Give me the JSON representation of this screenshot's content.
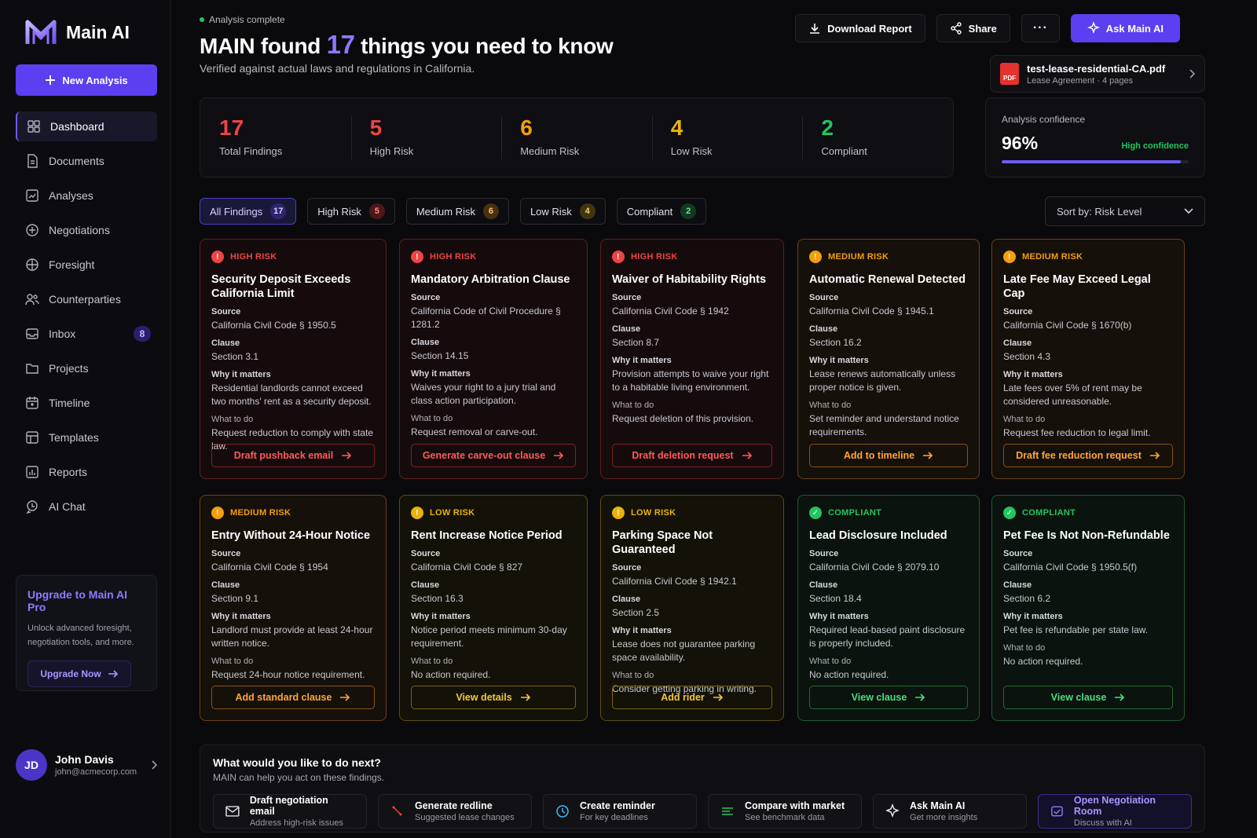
{
  "app": {
    "name": "Main AI"
  },
  "sidebar": {
    "new_analysis": "New Analysis",
    "items": [
      {
        "label": "Dashboard",
        "icon": "dashboard-icon"
      },
      {
        "label": "Documents",
        "icon": "document-icon"
      },
      {
        "label": "Analyses",
        "icon": "analyses-icon"
      },
      {
        "label": "Negotiations",
        "icon": "negotiations-icon"
      },
      {
        "label": "Foresight",
        "icon": "foresight-icon"
      },
      {
        "label": "Counterparties",
        "icon": "people-icon"
      },
      {
        "label": "Inbox",
        "icon": "inbox-icon",
        "badge": "8"
      },
      {
        "label": "Projects",
        "icon": "folder-icon"
      },
      {
        "label": "Timeline",
        "icon": "calendar-icon"
      },
      {
        "label": "Templates",
        "icon": "templates-icon"
      },
      {
        "label": "Reports",
        "icon": "reports-icon"
      },
      {
        "label": "AI Chat",
        "icon": "chat-icon"
      }
    ],
    "upgrade": {
      "title": "Upgrade to Main AI Pro",
      "desc": "Unlock advanced foresight, negotiation tools, and more.",
      "button": "Upgrade Now"
    },
    "user": {
      "initials": "JD",
      "name": "John Davis",
      "email": "john@acmecorp.com"
    }
  },
  "header": {
    "status": "Analysis complete",
    "headline_pre": "MAIN found",
    "headline_num": "17",
    "headline_post": "things you need to know",
    "subline": "Verified against actual laws and regulations in California.",
    "actions": {
      "download": "Download Report",
      "share": "Share",
      "more": "···",
      "ask": "Ask Main AI"
    },
    "file": {
      "name": "test-lease-residential-CA.pdf",
      "meta": "Lease Agreement · 4 pages",
      "icon_text": "PDF"
    }
  },
  "stats": [
    {
      "value": "17",
      "label": "Total Findings",
      "color": "#ef4444"
    },
    {
      "value": "5",
      "label": "High Risk",
      "color": "#ef4444"
    },
    {
      "value": "6",
      "label": "Medium Risk",
      "color": "#f59e0b"
    },
    {
      "value": "4",
      "label": "Low Risk",
      "color": "#eab308"
    },
    {
      "value": "2",
      "label": "Compliant",
      "color": "#22c55e"
    }
  ],
  "confidence": {
    "label": "Analysis confidence",
    "value": "96%",
    "level": 0.96,
    "text": "High confidence"
  },
  "filters": [
    {
      "label": "All Findings",
      "count": "17"
    },
    {
      "label": "High Risk",
      "count": "5"
    },
    {
      "label": "Medium Risk",
      "count": "6"
    },
    {
      "label": "Low Risk",
      "count": "4"
    },
    {
      "label": "Compliant",
      "count": "2"
    }
  ],
  "sort": "Sort by: Risk Level",
  "field_labels": {
    "source": "Source",
    "clause": "Clause",
    "why": "Why it matters",
    "todo": "What to do"
  },
  "cards": [
    {
      "risk": "HIGH RISK",
      "level": "high",
      "title": "Security Deposit Exceeds California Limit",
      "source": "California Civil Code § 1950.5",
      "clause": "Section 3.1",
      "why": "Residential landlords cannot exceed two months' rent as a security deposit.",
      "todo": "Request reduction to comply with state law.",
      "action": "Draft pushback email"
    },
    {
      "risk": "HIGH RISK",
      "level": "high",
      "title": "Mandatory Arbitration Clause",
      "source": "California Code of Civil Procedure § 1281.2",
      "clause": "Section 14.15",
      "why": "Waives your right to a jury trial and class action participation.",
      "todo": "Request removal or carve-out.",
      "action": "Generate carve-out clause"
    },
    {
      "risk": "HIGH RISK",
      "level": "high",
      "title": "Waiver of Habitability Rights",
      "source": "California Civil Code § 1942",
      "clause": "Section 8.7",
      "why": "Provision attempts to waive your right to a habitable living environment.",
      "todo": "Request deletion of this provision.",
      "action": "Draft deletion request"
    },
    {
      "risk": "MEDIUM RISK",
      "level": "medium",
      "title": "Automatic Renewal Detected",
      "source": "California Civil Code § 1945.1",
      "clause": "Section 16.2",
      "why": "Lease renews automatically unless proper notice is given.",
      "todo": "Set reminder and understand notice requirements.",
      "action": "Add to timeline"
    },
    {
      "risk": "MEDIUM RISK",
      "level": "medium",
      "title": "Late Fee May Exceed Legal Cap",
      "source": "California Civil Code § 1670(b)",
      "clause": "Section 4.3",
      "why": "Late fees over 5% of rent may be considered unreasonable.",
      "todo": "Request fee reduction to legal limit.",
      "action": "Draft fee reduction request"
    },
    {
      "risk": "MEDIUM RISK",
      "level": "medium",
      "title": "Entry Without 24-Hour Notice",
      "source": "California Civil Code § 1954",
      "clause": "Section 9.1",
      "why": "Landlord must provide at least 24-hour written notice.",
      "todo": "Request 24-hour notice requirement.",
      "action": "Add standard clause"
    },
    {
      "risk": "LOW RISK",
      "level": "low",
      "title": "Rent Increase Notice Period",
      "source": "California Civil Code § 827",
      "clause": "Section 16.3",
      "why": "Notice period meets minimum 30-day requirement.",
      "todo": "No action required.",
      "action": "View details"
    },
    {
      "risk": "LOW RISK",
      "level": "low",
      "title": "Parking Space Not Guaranteed",
      "source": "California Civil Code § 1942.1",
      "clause": "Section 2.5",
      "why": "Lease does not guarantee parking space availability.",
      "todo": "Consider getting parking in writing.",
      "action": "Add rider"
    },
    {
      "risk": "COMPLIANT",
      "level": "compliant",
      "title": "Lead Disclosure Included",
      "source": "California Civil Code § 2079.10",
      "clause": "Section 18.4",
      "why": "Required lead-based paint disclosure is properly included.",
      "todo": "No action required.",
      "action": "View clause"
    },
    {
      "risk": "COMPLIANT",
      "level": "compliant",
      "title": "Pet Fee Is Not Non-Refundable",
      "source": "California Civil Code § 1950.5(f)",
      "clause": "Section 6.2",
      "why": "Pet fee is refundable per state law.",
      "todo": "No action required.",
      "action": "View clause"
    }
  ],
  "next": {
    "title": "What would you like to do next?",
    "sub": "MAIN can help you act on these findings.",
    "actions": [
      {
        "title": "Draft negotiation email",
        "sub": "Address high-risk issues",
        "icon": "mail-icon"
      },
      {
        "title": "Generate redline",
        "sub": "Suggested lease changes",
        "icon": "redline-icon"
      },
      {
        "title": "Create reminder",
        "sub": "For key deadlines",
        "icon": "clock-icon"
      },
      {
        "title": "Compare with market",
        "sub": "See benchmark data",
        "icon": "compare-icon"
      },
      {
        "title": "Ask Main AI",
        "sub": "Get more insights",
        "icon": "sparkle-icon"
      },
      {
        "title": "Open Negotiation Room",
        "sub": "Discuss with AI",
        "icon": "room-icon"
      }
    ]
  },
  "colors": {
    "accent": "#5b3ff0",
    "high": "#ef4444",
    "medium": "#f59e0b",
    "low": "#eab308",
    "compliant": "#22c55e"
  }
}
